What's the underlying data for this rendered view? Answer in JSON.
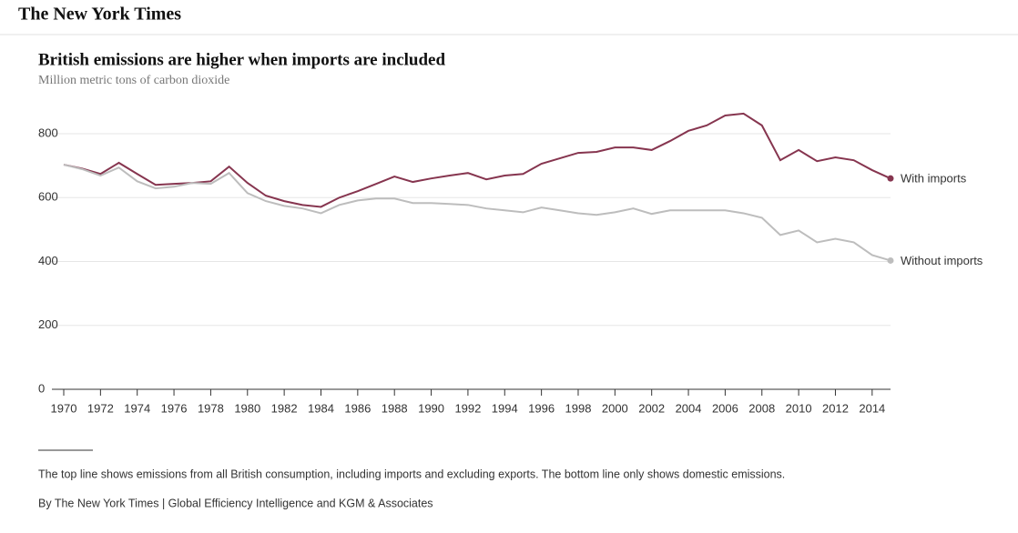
{
  "header": {
    "logo": "The New York Times"
  },
  "chart_data": {
    "type": "line",
    "title": "British emissions are higher when imports are included",
    "subtitle": "Million metric tons of carbon dioxide",
    "x": [
      1970,
      1971,
      1972,
      1973,
      1974,
      1975,
      1976,
      1977,
      1978,
      1979,
      1980,
      1981,
      1982,
      1983,
      1984,
      1985,
      1986,
      1987,
      1988,
      1989,
      1990,
      1991,
      1992,
      1993,
      1994,
      1995,
      1996,
      1997,
      1998,
      1999,
      2000,
      2001,
      2002,
      2003,
      2004,
      2005,
      2006,
      2007,
      2008,
      2009,
      2010,
      2011,
      2012,
      2013,
      2014,
      2015
    ],
    "series": [
      {
        "name": "With imports",
        "color": "#86354f",
        "values": [
          703,
          691,
          674,
          709,
          674,
          640,
          643,
          646,
          651,
          697,
          646,
          606,
          589,
          577,
          571,
          600,
          620,
          643,
          666,
          649,
          660,
          669,
          677,
          657,
          669,
          674,
          706,
          723,
          740,
          743,
          757,
          757,
          749,
          777,
          809,
          826,
          857,
          863,
          826,
          717,
          749,
          714,
          726,
          717,
          686,
          660
        ]
      },
      {
        "name": "Without imports",
        "color": "#bdbdbd",
        "values": [
          703,
          689,
          669,
          694,
          651,
          629,
          634,
          646,
          643,
          677,
          614,
          589,
          574,
          566,
          551,
          577,
          591,
          597,
          597,
          583,
          583,
          580,
          577,
          566,
          560,
          554,
          569,
          560,
          551,
          546,
          554,
          566,
          549,
          560,
          560,
          560,
          560,
          551,
          537,
          483,
          497,
          460,
          471,
          460,
          420,
          403
        ]
      }
    ],
    "xlim": [
      1970,
      2015
    ],
    "xticks": [
      1970,
      1972,
      1974,
      1976,
      1978,
      1980,
      1982,
      1984,
      1986,
      1988,
      1990,
      1992,
      1994,
      1996,
      1998,
      2000,
      2002,
      2004,
      2006,
      2008,
      2010,
      2012,
      2014
    ],
    "ylim": [
      0,
      800
    ],
    "yticks": [
      0,
      200,
      400,
      600,
      800
    ],
    "grid": true
  },
  "notes": [
    "The top line shows emissions from all British consumption, including imports and excluding exports. The bottom line only shows domestic emissions.",
    "By The New York Times | Global Efficiency Intelligence and KGM & Associates"
  ]
}
